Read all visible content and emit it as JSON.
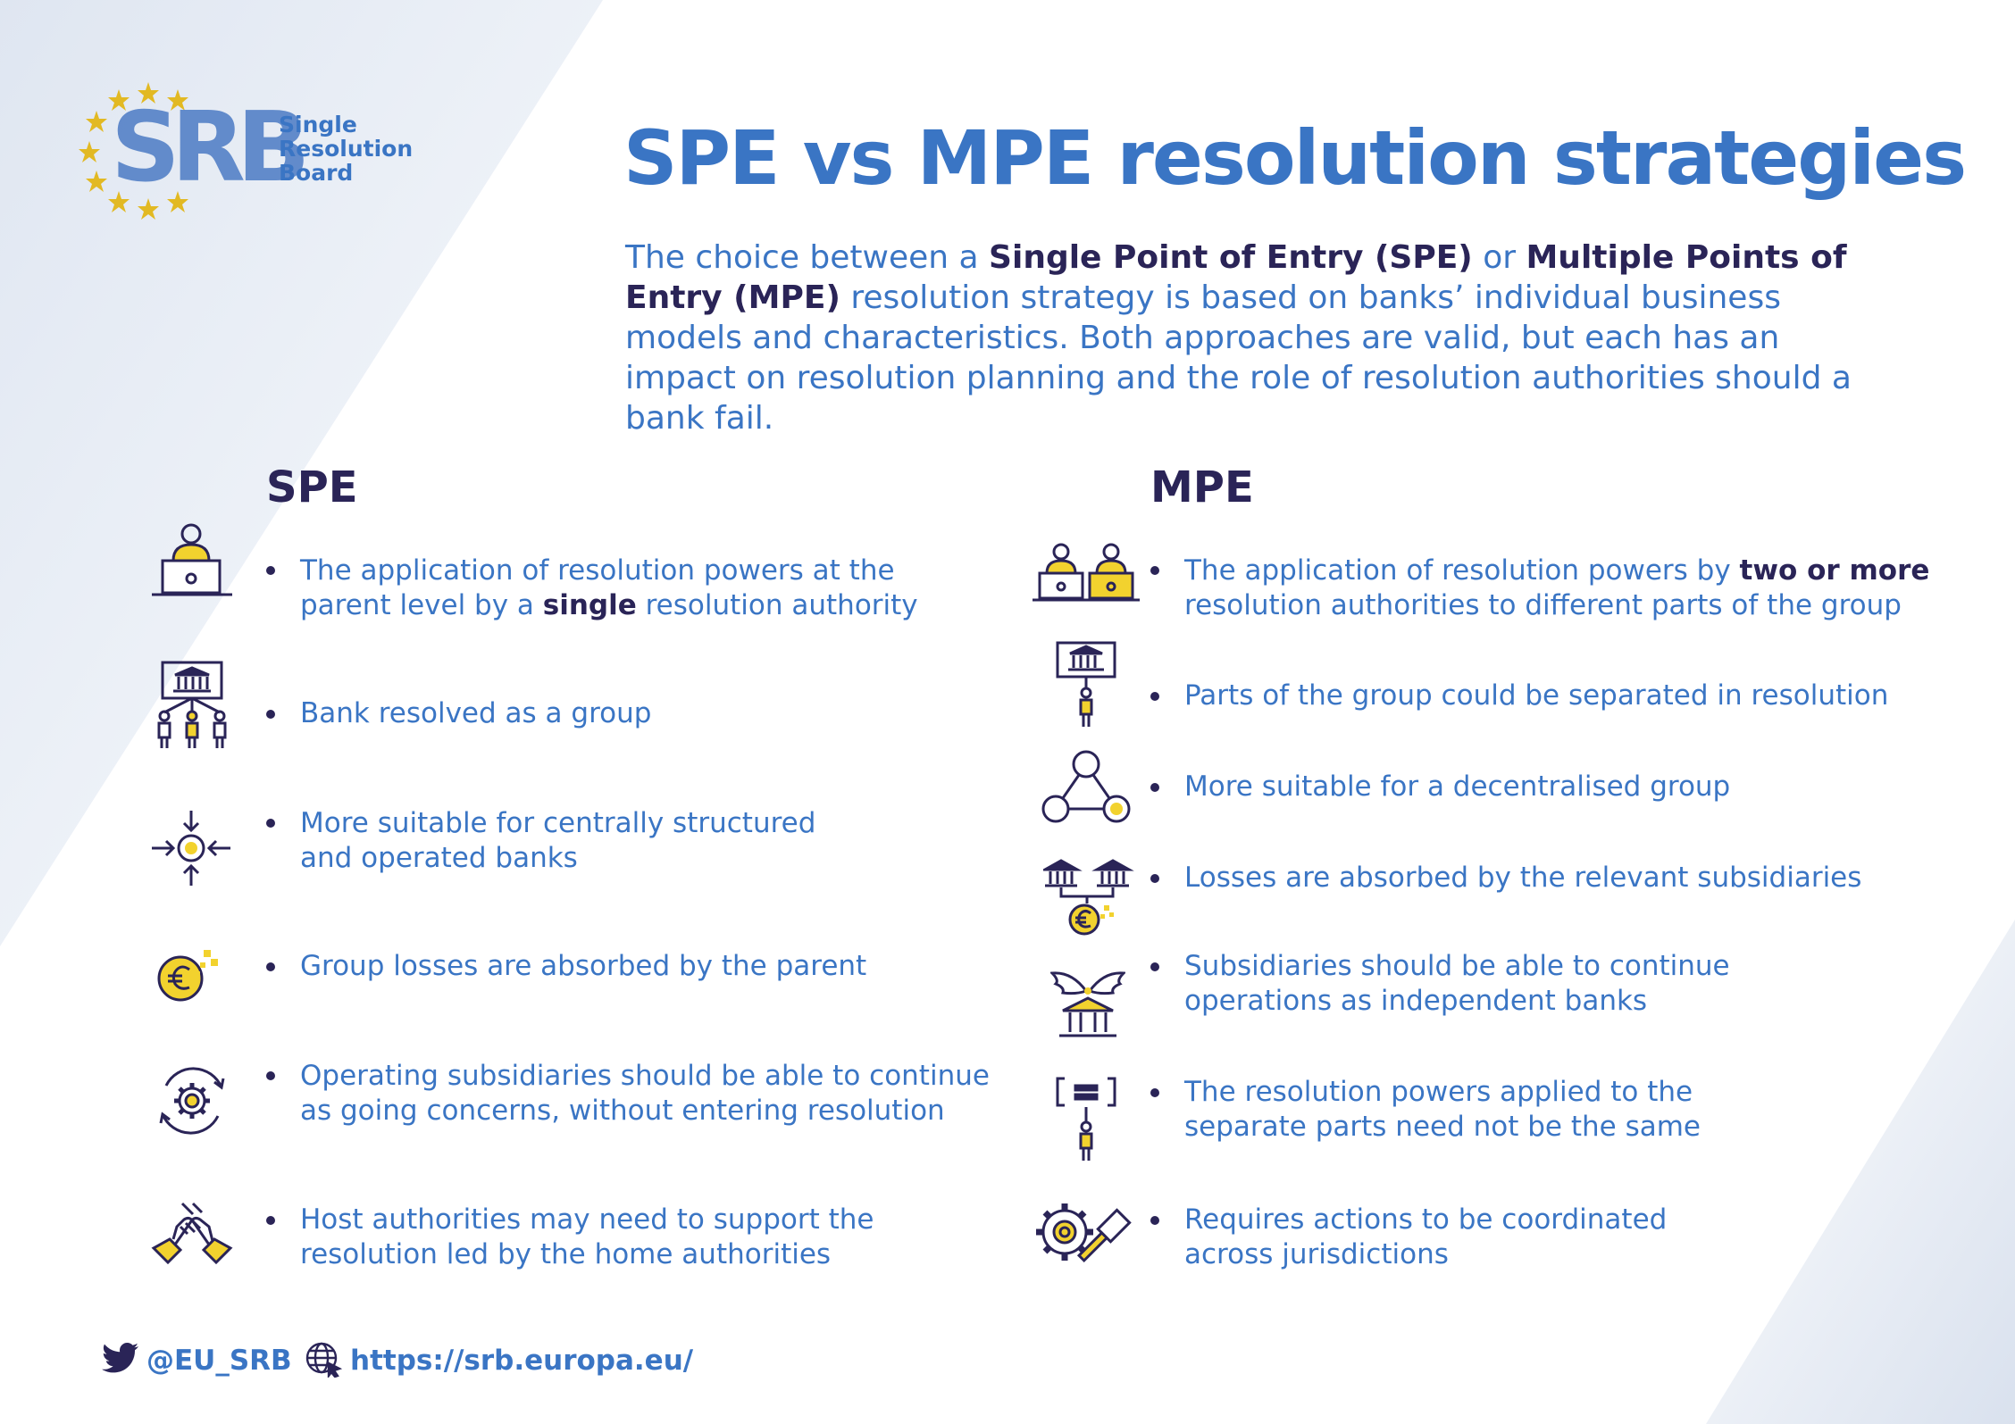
{
  "colors": {
    "accent": "#3a75c4",
    "dark": "#2a2457",
    "yellow": "#f2d22e",
    "star": "#e2b923"
  },
  "logo": {
    "letters": "SRB",
    "line1": "Single",
    "line2": "Resolution",
    "line3": "Board"
  },
  "title": "SPE vs MPE resolution strategies",
  "intro": {
    "t1": "The choice between a ",
    "b1": "Single Point of Entry (SPE)",
    "t2": " or ",
    "b2": "Multiple Points of Entry (MPE)",
    "t3": " resolution strategy is based on banks’ individual business models and characteristics. Both approaches are valid, but each has an impact on resolution planning and the role of resolution authorities should a bank fail."
  },
  "spe": {
    "heading": "SPE",
    "items": [
      {
        "icon": "person-laptop-icon",
        "line1": "The application of resolution powers at the",
        "line2a": "parent level by a ",
        "line2b": "single",
        "line2c": " resolution authority"
      },
      {
        "icon": "bank-group-icon",
        "line1": "Bank resolved as a group"
      },
      {
        "icon": "converging-arrows-icon",
        "line1": "More suitable for centrally structured",
        "line2": "and operated banks"
      },
      {
        "icon": "euro-coin-icon",
        "line1": "Group losses are absorbed by the parent"
      },
      {
        "icon": "gear-cycle-icon",
        "line1": "Operating subsidiaries should be able to continue",
        "line2": "as going concerns, without entering resolution"
      },
      {
        "icon": "handshake-icon",
        "line1": "Host authorities may need to support the",
        "line2": "resolution led by the home authorities"
      }
    ]
  },
  "mpe": {
    "heading": "MPE",
    "items": [
      {
        "icon": "two-persons-laptops-icon",
        "line1a": "The application of resolution powers by ",
        "line1b": "two or more",
        "line2": "resolution authorities to different parts of the group"
      },
      {
        "icon": "bank-person-icon",
        "line1": "Parts of the group could be separated in resolution"
      },
      {
        "icon": "network-nodes-icon",
        "line1": "More suitable for a decentralised group"
      },
      {
        "icon": "banks-euro-icon",
        "line1": "Losses are absorbed by the relevant subsidiaries"
      },
      {
        "icon": "winged-bank-icon",
        "line1": "Subsidiaries should be able to continue",
        "line2": "operations as independent banks"
      },
      {
        "icon": "equals-person-icon",
        "line1": "The resolution powers applied to the",
        "line2": "separate parts need not be the same"
      },
      {
        "icon": "gear-gavel-icon",
        "line1": "Requires actions to be coordinated",
        "line2": "across jurisdictions"
      }
    ]
  },
  "footer": {
    "twitter": "@EU_SRB",
    "twitter_icon": "twitter-bird-icon",
    "website": "https://srb.europa.eu/",
    "website_icon": "globe-cursor-icon"
  }
}
